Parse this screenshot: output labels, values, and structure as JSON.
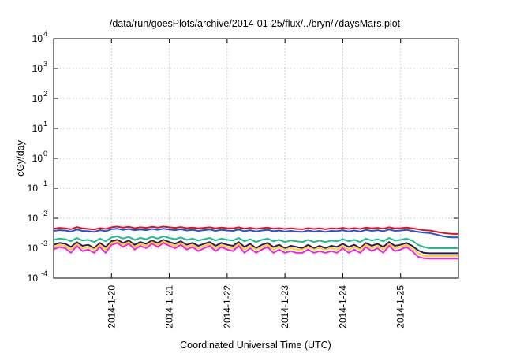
{
  "chart_data": {
    "type": "line",
    "title": "/data/run/goesPlots/archive/2014-01-25/flux/../bryn/7daysMars.plot",
    "xlabel": "Coordinated Universal Time (UTC)",
    "ylabel": "cGy/day",
    "yscale": "log",
    "ylim": [
      0.0001,
      10000
    ],
    "xlim": [
      0.0,
      7.0
    ],
    "y_ticks": [
      {
        "exp": "-4"
      },
      {
        "exp": "-3"
      },
      {
        "exp": "-2"
      },
      {
        "exp": "-1"
      },
      {
        "exp": "0"
      },
      {
        "exp": "1"
      },
      {
        "exp": "2"
      },
      {
        "exp": "3"
      },
      {
        "exp": "4"
      }
    ],
    "x_tick_labels": [
      "2014-1-20",
      "2014-1-21",
      "2014-1-22",
      "2014-1-23",
      "2014-1-24",
      "2014-1-25"
    ],
    "grid": true,
    "x": [
      0.0,
      0.1,
      0.2,
      0.3,
      0.4,
      0.5,
      0.6,
      0.7,
      0.8,
      0.9,
      1.0,
      1.1,
      1.2,
      1.3,
      1.4,
      1.5,
      1.6,
      1.7,
      1.8,
      1.9,
      2.0,
      2.1,
      2.2,
      2.3,
      2.4,
      2.5,
      2.6,
      2.7,
      2.8,
      2.9,
      3.0,
      3.1,
      3.2,
      3.3,
      3.4,
      3.5,
      3.6,
      3.7,
      3.8,
      3.9,
      4.0,
      4.1,
      4.2,
      4.3,
      4.4,
      4.5,
      4.6,
      4.7,
      4.8,
      4.9,
      5.0,
      5.1,
      5.2,
      5.3,
      5.4,
      5.5,
      5.6,
      5.7,
      5.8,
      5.9,
      6.0,
      6.1,
      6.2,
      6.3,
      6.4,
      6.5,
      6.6,
      6.7,
      6.8,
      6.9,
      7.0
    ],
    "series": [
      {
        "color": "#e8101c",
        "values": [
          0.0045,
          0.0048,
          0.0046,
          0.0043,
          0.0051,
          0.0046,
          0.0044,
          0.0042,
          0.0047,
          0.0044,
          0.005,
          0.0053,
          0.0049,
          0.0052,
          0.0047,
          0.005,
          0.0048,
          0.0052,
          0.0049,
          0.0053,
          0.005,
          0.0048,
          0.0051,
          0.0047,
          0.0049,
          0.0046,
          0.0048,
          0.005,
          0.0046,
          0.0049,
          0.0047,
          0.0046,
          0.005,
          0.0045,
          0.0048,
          0.0044,
          0.0047,
          0.0049,
          0.0045,
          0.0047,
          0.0044,
          0.0046,
          0.0044,
          0.0043,
          0.0047,
          0.0044,
          0.0046,
          0.0043,
          0.0046,
          0.0045,
          0.0048,
          0.0044,
          0.0047,
          0.0044,
          0.0049,
          0.0046,
          0.0048,
          0.0045,
          0.005,
          0.0046,
          0.0047,
          0.0049,
          0.0046,
          0.0043,
          0.004,
          0.0039,
          0.0036,
          0.0033,
          0.0031,
          0.003,
          0.003
        ]
      },
      {
        "color": "#1a56d8",
        "values": [
          0.0038,
          0.004,
          0.0039,
          0.0036,
          0.0042,
          0.0038,
          0.0037,
          0.0035,
          0.004,
          0.0037,
          0.0043,
          0.0045,
          0.0041,
          0.0044,
          0.004,
          0.0042,
          0.004,
          0.0044,
          0.0041,
          0.0045,
          0.0042,
          0.004,
          0.0043,
          0.0039,
          0.0041,
          0.0038,
          0.004,
          0.0042,
          0.0038,
          0.0041,
          0.0039,
          0.0038,
          0.0042,
          0.0037,
          0.004,
          0.0036,
          0.0039,
          0.0041,
          0.0037,
          0.0039,
          0.0036,
          0.0038,
          0.0036,
          0.0035,
          0.0039,
          0.0036,
          0.0038,
          0.0035,
          0.0038,
          0.0037,
          0.004,
          0.0036,
          0.0039,
          0.0036,
          0.0041,
          0.0038,
          0.004,
          0.0037,
          0.0042,
          0.0038,
          0.0039,
          0.0041,
          0.0038,
          0.0035,
          0.0033,
          0.0032,
          0.0029,
          0.0026,
          0.0024,
          0.0023,
          0.0023
        ]
      },
      {
        "color": "#1bbf8a",
        "values": [
          0.0019,
          0.0021,
          0.002,
          0.0017,
          0.0022,
          0.0018,
          0.0019,
          0.0016,
          0.0021,
          0.0017,
          0.0023,
          0.0025,
          0.0021,
          0.0024,
          0.0019,
          0.0022,
          0.002,
          0.0024,
          0.0021,
          0.0025,
          0.0022,
          0.002,
          0.0023,
          0.0019,
          0.0021,
          0.0018,
          0.002,
          0.0022,
          0.0018,
          0.0021,
          0.0019,
          0.0018,
          0.0022,
          0.0017,
          0.002,
          0.0016,
          0.0019,
          0.0021,
          0.0017,
          0.0019,
          0.0016,
          0.0018,
          0.0017,
          0.0016,
          0.0019,
          0.0016,
          0.0018,
          0.0016,
          0.0018,
          0.0017,
          0.002,
          0.0017,
          0.0019,
          0.0016,
          0.0021,
          0.0018,
          0.002,
          0.0017,
          0.0022,
          0.0018,
          0.0019,
          0.0021,
          0.0018,
          0.0013,
          0.0011,
          0.001,
          0.001,
          0.001,
          0.001,
          0.001,
          0.001
        ]
      },
      {
        "color": "#2a1a5e",
        "values": [
          0.0013,
          0.0015,
          0.0014,
          0.0011,
          0.0016,
          0.0012,
          0.0013,
          0.001,
          0.0015,
          0.0011,
          0.0017,
          0.0019,
          0.0015,
          0.0018,
          0.0013,
          0.0016,
          0.0014,
          0.0018,
          0.0015,
          0.0019,
          0.0016,
          0.0014,
          0.0017,
          0.0013,
          0.0015,
          0.0012,
          0.0014,
          0.0016,
          0.0012,
          0.0015,
          0.0013,
          0.0012,
          0.0016,
          0.0011,
          0.0014,
          0.001,
          0.0013,
          0.0015,
          0.0011,
          0.0013,
          0.001,
          0.0012,
          0.0011,
          0.001,
          0.0013,
          0.001,
          0.0012,
          0.001,
          0.0012,
          0.0011,
          0.0014,
          0.0011,
          0.0013,
          0.001,
          0.0015,
          0.0012,
          0.0014,
          0.0011,
          0.0016,
          0.0012,
          0.0013,
          0.0015,
          0.0012,
          0.00085,
          0.0007,
          0.00068,
          0.00068,
          0.00068,
          0.00068,
          0.00068,
          0.00068
        ]
      },
      {
        "color": "#ffd21f",
        "values": [
          0.0011,
          0.0013,
          0.0012,
          0.0009,
          0.0014,
          0.001,
          0.0011,
          0.0009,
          0.0013,
          0.0009,
          0.0015,
          0.0017,
          0.0013,
          0.0016,
          0.0011,
          0.0014,
          0.0012,
          0.0016,
          0.0013,
          0.0017,
          0.0014,
          0.0012,
          0.0015,
          0.0011,
          0.0013,
          0.001,
          0.0012,
          0.0014,
          0.001,
          0.0013,
          0.0011,
          0.001,
          0.0014,
          0.0009,
          0.0012,
          0.0009,
          0.0011,
          0.0013,
          0.0009,
          0.0011,
          0.0009,
          0.001,
          0.0009,
          0.0009,
          0.0011,
          0.0009,
          0.001,
          0.0009,
          0.001,
          0.0009,
          0.0012,
          0.0009,
          0.0011,
          0.0009,
          0.0013,
          0.001,
          0.0012,
          0.0009,
          0.0014,
          0.001,
          0.0011,
          0.0013,
          0.001,
          0.00068,
          0.00056,
          0.00055,
          0.00055,
          0.00055,
          0.00055,
          0.00055,
          0.00055
        ]
      },
      {
        "color": "#ff1ee0",
        "values": [
          0.0009,
          0.0011,
          0.001,
          0.0007,
          0.0012,
          0.0008,
          0.0009,
          0.0007,
          0.0011,
          0.0007,
          0.0013,
          0.0015,
          0.0011,
          0.0014,
          0.0009,
          0.0012,
          0.001,
          0.0014,
          0.0011,
          0.0015,
          0.0012,
          0.001,
          0.0013,
          0.0009,
          0.0011,
          0.0008,
          0.001,
          0.0012,
          0.0008,
          0.0011,
          0.0009,
          0.0008,
          0.0012,
          0.0007,
          0.001,
          0.0007,
          0.0009,
          0.0011,
          0.0007,
          0.0009,
          0.0007,
          0.0008,
          0.0007,
          0.0007,
          0.0009,
          0.0007,
          0.0008,
          0.0007,
          0.0008,
          0.0007,
          0.001,
          0.0007,
          0.0009,
          0.0007,
          0.0011,
          0.0008,
          0.001,
          0.0007,
          0.0012,
          0.0008,
          0.0009,
          0.0011,
          0.0008,
          0.00052,
          0.00046,
          0.00045,
          0.00045,
          0.00045,
          0.00045,
          0.00045,
          0.00045
        ]
      }
    ]
  }
}
